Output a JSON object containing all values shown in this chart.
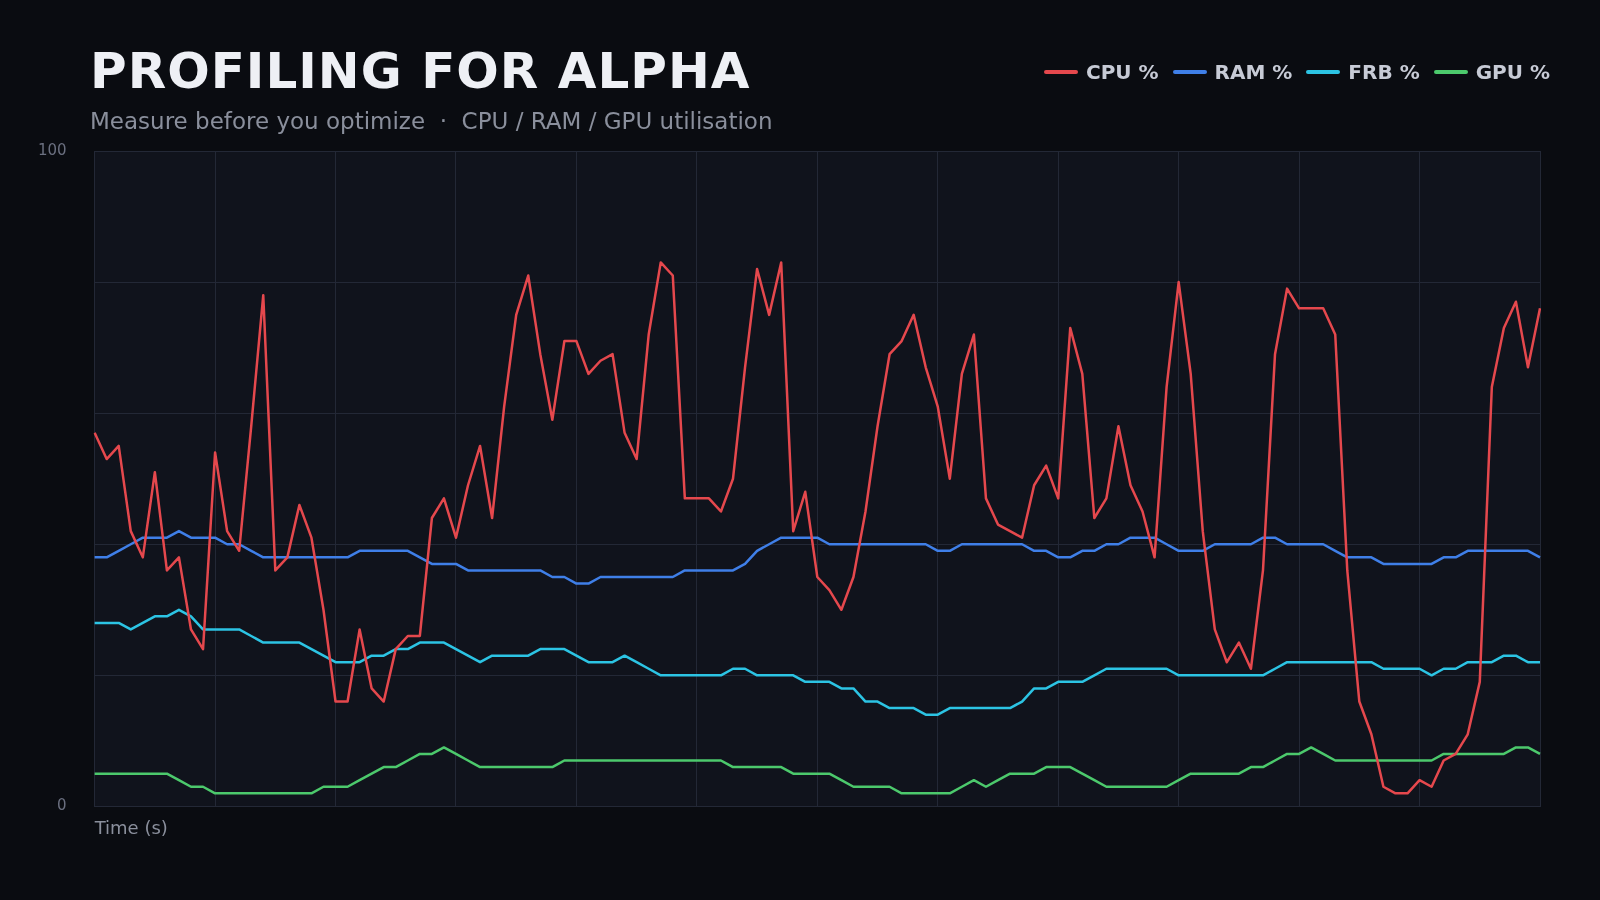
{
  "chart_data": {
    "type": "line",
    "title": "PROFILING FOR ALPHA",
    "subtitle": "Measure before you optimize  ·  CPU / RAM / GPU utilisation",
    "xlabel": "Time (s)",
    "categories": [
      null,
      null,
      null,
      null,
      null,
      null,
      null,
      null,
      null,
      null,
      null,
      null,
      null,
      null,
      null,
      null,
      null,
      null,
      null,
      null,
      null,
      null,
      null,
      null,
      null,
      null,
      null,
      null,
      null,
      null,
      null,
      null,
      null,
      null,
      null,
      null,
      null,
      null,
      null,
      null,
      null,
      null,
      null,
      null,
      null,
      null,
      null,
      null,
      null,
      null,
      null,
      null,
      null,
      null,
      null,
      null,
      null,
      null,
      null,
      null,
      null,
      null,
      null,
      null,
      null,
      null,
      null,
      null,
      null,
      null,
      null,
      null,
      null,
      null,
      null,
      null,
      null,
      null,
      null,
      null,
      null,
      null,
      null,
      null,
      null,
      null,
      null,
      null,
      null,
      null,
      null,
      null,
      null,
      null,
      null,
      null,
      null,
      null,
      null,
      null,
      null,
      null,
      null,
      null,
      null,
      null,
      null,
      null,
      null,
      null,
      null,
      null,
      null,
      null,
      null,
      null,
      null,
      null,
      null,
      null,
      null
    ],
    "series": [
      {
        "name": "CPU %",
        "color": "#e5484d",
        "values": [
          57,
          53,
          55,
          42,
          38,
          51,
          36,
          38,
          27,
          24,
          54,
          42,
          39,
          58,
          78,
          36,
          38,
          46,
          41,
          30,
          16,
          16,
          27,
          18,
          16,
          24,
          26,
          26,
          44,
          47,
          41,
          49,
          55,
          44,
          61,
          75,
          81,
          69,
          59,
          71,
          71,
          66,
          68,
          69,
          57,
          53,
          72,
          83,
          81,
          47,
          47,
          47,
          45,
          50,
          67,
          82,
          75,
          83,
          42,
          48,
          35,
          33,
          30,
          35,
          45,
          58,
          69,
          71,
          75,
          67,
          61,
          50,
          66,
          72,
          47,
          43,
          42,
          41,
          49,
          52,
          47,
          73,
          66,
          44,
          47,
          58,
          49,
          45,
          38,
          64,
          80,
          66,
          42,
          27,
          22,
          25,
          21,
          36,
          69,
          79,
          76,
          76,
          76,
          72,
          36,
          16,
          11,
          3,
          2,
          2,
          4,
          3,
          7,
          8,
          11,
          19,
          64,
          73,
          77,
          67,
          76
        ]
      },
      {
        "name": "RAM %",
        "color": "#3f7fe8",
        "values": [
          38,
          38,
          39,
          40,
          41,
          41,
          41,
          42,
          41,
          41,
          41,
          40,
          40,
          39,
          38,
          38,
          38,
          38,
          38,
          38,
          38,
          38,
          39,
          39,
          39,
          39,
          39,
          38,
          37,
          37,
          37,
          36,
          36,
          36,
          36,
          36,
          36,
          36,
          35,
          35,
          34,
          34,
          35,
          35,
          35,
          35,
          35,
          35,
          35,
          36,
          36,
          36,
          36,
          36,
          37,
          39,
          40,
          41,
          41,
          41,
          41,
          40,
          40,
          40,
          40,
          40,
          40,
          40,
          40,
          40,
          39,
          39,
          40,
          40,
          40,
          40,
          40,
          40,
          39,
          39,
          38,
          38,
          39,
          39,
          40,
          40,
          41,
          41,
          41,
          40,
          39,
          39,
          39,
          40,
          40,
          40,
          40,
          41,
          41,
          40,
          40,
          40,
          40,
          39,
          38,
          38,
          38,
          37,
          37,
          37,
          37,
          37,
          38,
          38,
          39,
          39,
          39,
          39,
          39,
          39,
          38
        ]
      },
      {
        "name": "FRB %",
        "color": "#2cc4e4",
        "values": [
          28,
          28,
          28,
          27,
          28,
          29,
          29,
          30,
          29,
          27,
          27,
          27,
          27,
          26,
          25,
          25,
          25,
          25,
          24,
          23,
          22,
          22,
          22,
          23,
          23,
          24,
          24,
          25,
          25,
          25,
          24,
          23,
          22,
          23,
          23,
          23,
          23,
          24,
          24,
          24,
          23,
          22,
          22,
          22,
          23,
          22,
          21,
          20,
          20,
          20,
          20,
          20,
          20,
          21,
          21,
          20,
          20,
          20,
          20,
          19,
          19,
          19,
          18,
          18,
          16,
          16,
          15,
          15,
          15,
          14,
          14,
          15,
          15,
          15,
          15,
          15,
          15,
          16,
          18,
          18,
          19,
          19,
          19,
          20,
          21,
          21,
          21,
          21,
          21,
          21,
          20,
          20,
          20,
          20,
          20,
          20,
          20,
          20,
          21,
          22,
          22,
          22,
          22,
          22,
          22,
          22,
          22,
          21,
          21,
          21,
          21,
          20,
          21,
          21,
          22,
          22,
          22,
          23,
          23,
          22,
          22
        ]
      },
      {
        "name": "GPU %",
        "color": "#4cc96c",
        "values": [
          5,
          5,
          5,
          5,
          5,
          5,
          5,
          4,
          3,
          3,
          2,
          2,
          2,
          2,
          2,
          2,
          2,
          2,
          2,
          3,
          3,
          3,
          4,
          5,
          6,
          6,
          7,
          8,
          8,
          9,
          8,
          7,
          6,
          6,
          6,
          6,
          6,
          6,
          6,
          7,
          7,
          7,
          7,
          7,
          7,
          7,
          7,
          7,
          7,
          7,
          7,
          7,
          7,
          6,
          6,
          6,
          6,
          6,
          5,
          5,
          5,
          5,
          4,
          3,
          3,
          3,
          3,
          2,
          2,
          2,
          2,
          2,
          3,
          4,
          3,
          4,
          5,
          5,
          5,
          6,
          6,
          6,
          5,
          4,
          3,
          3,
          3,
          3,
          3,
          3,
          4,
          5,
          5,
          5,
          5,
          5,
          6,
          6,
          7,
          8,
          8,
          9,
          8,
          7,
          7,
          7,
          7,
          7,
          7,
          7,
          7,
          7,
          8,
          8,
          8,
          8,
          8,
          8,
          9,
          9,
          8
        ]
      }
    ],
    "ylim": [
      0,
      100
    ],
    "yticks": [
      0,
      {
        "value": 20,
        "label": null
      },
      {
        "value": 40,
        "label": null
      },
      {
        "value": 60,
        "label": null
      },
      {
        "value": 80,
        "label": null
      },
      100
    ],
    "grid": true,
    "legend": "top right",
    "tick_labels": "y",
    "marker": "none",
    "line_style": "solid"
  }
}
